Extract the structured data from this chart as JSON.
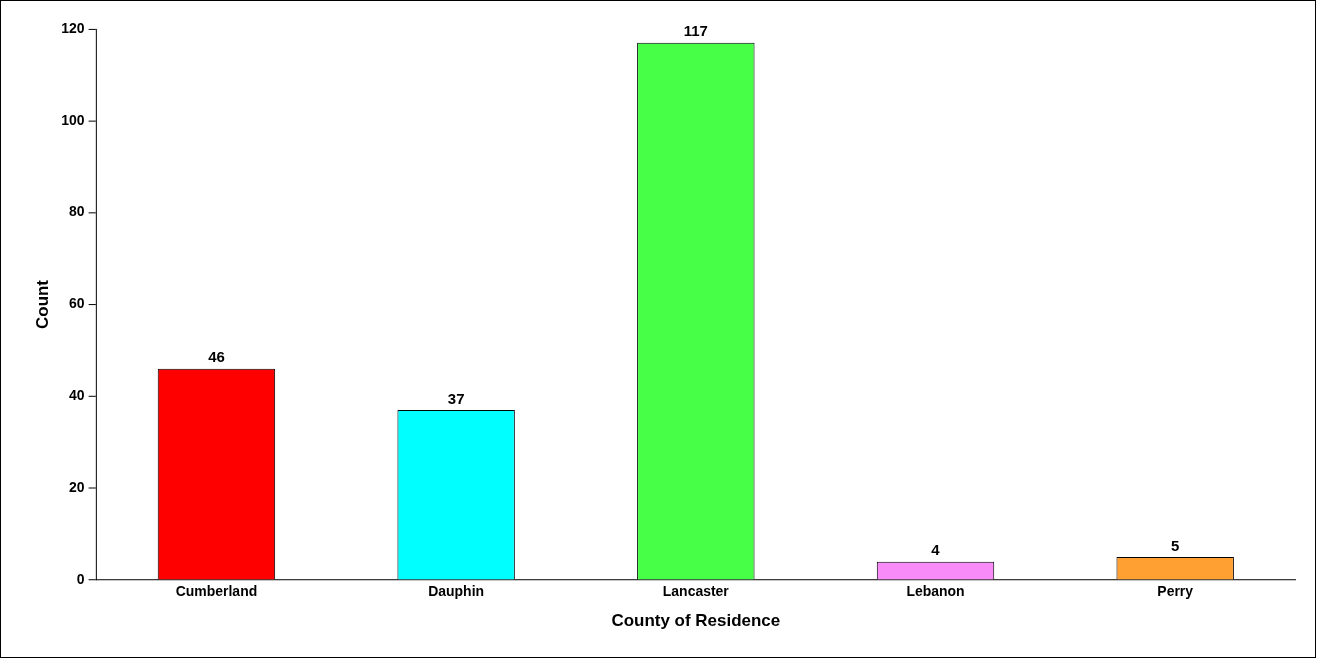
{
  "chart_data": {
    "type": "bar",
    "xlabel": "County of Residence",
    "ylabel": "Count",
    "categories": [
      "Cumberland",
      "Dauphin",
      "Lancaster",
      "Lebanon",
      "Perry"
    ],
    "values": [
      46,
      37,
      117,
      4,
      5
    ],
    "colors": [
      "#ff0000",
      "#00ffff",
      "#47ff47",
      "#f98bf9",
      "#ffa033"
    ],
    "ylim": [
      0,
      120
    ],
    "yticks": [
      0,
      20,
      40,
      60,
      80,
      100,
      120
    ],
    "grid": false,
    "legend": false,
    "data_labels": true
  }
}
